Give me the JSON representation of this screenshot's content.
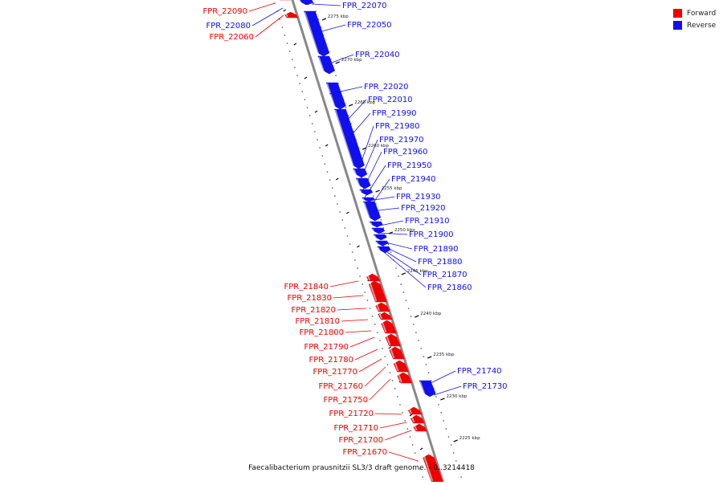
{
  "caption": "Faecalibacterium prausnitzii SL3/3 draft genome. - 0..3214418",
  "legend": [
    {
      "label": "Forward",
      "color": "#ee0000"
    },
    {
      "label": "Reverse",
      "color": "#1010ee"
    }
  ],
  "colors": {
    "forward": "#ee0000",
    "reverse": "#1010ee",
    "backbone": "#888888"
  },
  "ticks": [
    "2275 kbp",
    "2270 kbp",
    "2265 kbp",
    "2260 kbp",
    "2255 kbp",
    "2250 kbp",
    "2245 kbp",
    "2240 kbp",
    "2235 kbp",
    "2230 kbp",
    "2225 kbp"
  ],
  "genes": [
    {
      "id": "FPR_22090",
      "strand": "forward"
    },
    {
      "id": "FPR_22080",
      "strand": "reverse"
    },
    {
      "id": "FPR_22070",
      "strand": "reverse"
    },
    {
      "id": "FPR_22060",
      "strand": "forward"
    },
    {
      "id": "FPR_22050",
      "strand": "reverse"
    },
    {
      "id": "FPR_22040",
      "strand": "reverse"
    },
    {
      "id": "FPR_22020",
      "strand": "reverse"
    },
    {
      "id": "FPR_22010",
      "strand": "reverse"
    },
    {
      "id": "FPR_21990",
      "strand": "reverse"
    },
    {
      "id": "FPR_21980",
      "strand": "reverse"
    },
    {
      "id": "FPR_21970",
      "strand": "reverse"
    },
    {
      "id": "FPR_21960",
      "strand": "reverse"
    },
    {
      "id": "FPR_21950",
      "strand": "reverse"
    },
    {
      "id": "FPR_21940",
      "strand": "reverse"
    },
    {
      "id": "FPR_21930",
      "strand": "reverse"
    },
    {
      "id": "FPR_21920",
      "strand": "reverse"
    },
    {
      "id": "FPR_21910",
      "strand": "reverse"
    },
    {
      "id": "FPR_21900",
      "strand": "reverse"
    },
    {
      "id": "FPR_21890",
      "strand": "reverse"
    },
    {
      "id": "FPR_21880",
      "strand": "reverse"
    },
    {
      "id": "FPR_21870",
      "strand": "reverse"
    },
    {
      "id": "FPR_21860",
      "strand": "reverse"
    },
    {
      "id": "FPR_21840",
      "strand": "forward"
    },
    {
      "id": "FPR_21830",
      "strand": "forward"
    },
    {
      "id": "FPR_21820",
      "strand": "forward"
    },
    {
      "id": "FPR_21810",
      "strand": "forward"
    },
    {
      "id": "FPR_21800",
      "strand": "forward"
    },
    {
      "id": "FPR_21790",
      "strand": "forward"
    },
    {
      "id": "FPR_21780",
      "strand": "forward"
    },
    {
      "id": "FPR_21770",
      "strand": "forward"
    },
    {
      "id": "FPR_21760",
      "strand": "forward"
    },
    {
      "id": "FPR_21750",
      "strand": "forward"
    },
    {
      "id": "FPR_21740",
      "strand": "reverse"
    },
    {
      "id": "FPR_21730",
      "strand": "reverse"
    },
    {
      "id": "FPR_21720",
      "strand": "forward"
    },
    {
      "id": "FPR_21710",
      "strand": "forward"
    },
    {
      "id": "FPR_21700",
      "strand": "forward"
    },
    {
      "id": "FPR_21670",
      "strand": "forward"
    }
  ]
}
